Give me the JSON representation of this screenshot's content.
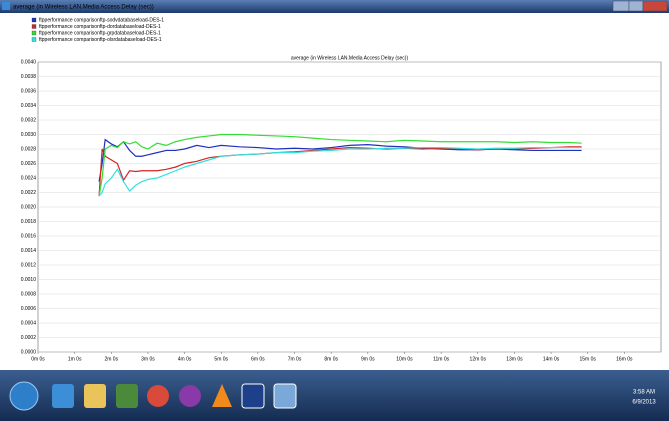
{
  "window": {
    "title": "average (in Wireless LAN.Media Access Delay (sec))"
  },
  "taskbar": {
    "time": "3:58 AM",
    "date": "6/9/2013"
  },
  "chart_data": {
    "type": "line",
    "title": "average (in Wireless LAN.Media Access Delay (sec))",
    "x": [
      100,
      105,
      110,
      120,
      130,
      140,
      150,
      160,
      170,
      180,
      195,
      210,
      225,
      240,
      260,
      280,
      300,
      330,
      360,
      390,
      420,
      450,
      480,
      510,
      540,
      570,
      600,
      630,
      660,
      690,
      720,
      750,
      780,
      810,
      840,
      870,
      890
    ],
    "series": [
      {
        "name": "ftpperformance comparisonftp-sodvdatabaseload-DES-1",
        "color": "#1f2fbf",
        "values": [
          0.00235,
          0.0026,
          0.00293,
          0.00287,
          0.00283,
          0.0029,
          0.00278,
          0.0027,
          0.0027,
          0.00272,
          0.00275,
          0.00278,
          0.00278,
          0.0028,
          0.00285,
          0.00282,
          0.00285,
          0.00283,
          0.00282,
          0.0028,
          0.00281,
          0.0028,
          0.00282,
          0.00285,
          0.00286,
          0.00284,
          0.00283,
          0.00281,
          0.0028,
          0.00279,
          0.00279,
          0.0028,
          0.00279,
          0.00278,
          0.00278,
          0.00278,
          0.00278
        ]
      },
      {
        "name": "ftpperformance comparisonftp-dordatabaseload-DES-1",
        "color": "#d42424",
        "values": [
          0.00215,
          0.0028,
          0.0027,
          0.00265,
          0.0026,
          0.00237,
          0.0025,
          0.00249,
          0.0025,
          0.0025,
          0.0025,
          0.00252,
          0.00255,
          0.0026,
          0.00263,
          0.00268,
          0.0027,
          0.00272,
          0.00273,
          0.00275,
          0.00276,
          0.00278,
          0.0028,
          0.00282,
          0.00281,
          0.0028,
          0.00281,
          0.0028,
          0.00281,
          0.0028,
          0.00279,
          0.0028,
          0.0028,
          0.00281,
          0.00282,
          0.00283,
          0.00283
        ]
      },
      {
        "name": "ftpperformance comparisonftp-grpdatabaseload-DES-1",
        "color": "#33dd33",
        "values": [
          0.00215,
          0.0024,
          0.0028,
          0.00285,
          0.00282,
          0.0029,
          0.00287,
          0.0029,
          0.00283,
          0.0028,
          0.00288,
          0.00285,
          0.0029,
          0.00293,
          0.00296,
          0.00298,
          0.003,
          0.003,
          0.00299,
          0.00298,
          0.00297,
          0.00295,
          0.00293,
          0.00292,
          0.00291,
          0.0029,
          0.00292,
          0.00291,
          0.0029,
          0.0029,
          0.0029,
          0.0029,
          0.00289,
          0.0029,
          0.00289,
          0.00289,
          0.00288
        ]
      },
      {
        "name": "ftpperformance comparisonftp-olsrdatabaseload-DES-1",
        "color": "#33e0e0",
        "values": [
          0.00215,
          0.0022,
          0.00232,
          0.0024,
          0.00252,
          0.00235,
          0.00222,
          0.0023,
          0.00235,
          0.00238,
          0.0024,
          0.00245,
          0.0025,
          0.00255,
          0.0026,
          0.00265,
          0.0027,
          0.00272,
          0.00273,
          0.00275,
          0.00275,
          0.00277,
          0.00278,
          0.0028,
          0.0028,
          0.00281,
          0.00281,
          0.00282,
          0.00282,
          0.00281,
          0.0028,
          0.00281,
          0.00281,
          0.00282,
          0.00282,
          0.00282,
          0.00282
        ]
      }
    ],
    "xlim": [
      0,
      1020
    ],
    "xticks": [
      {
        "value": 0,
        "label": "0m 0s"
      },
      {
        "value": 60,
        "label": "1m 0s"
      },
      {
        "value": 120,
        "label": "2m 0s"
      },
      {
        "value": 180,
        "label": "3m 0s"
      },
      {
        "value": 240,
        "label": "4m 0s"
      },
      {
        "value": 300,
        "label": "5m 0s"
      },
      {
        "value": 360,
        "label": "6m 0s"
      },
      {
        "value": 420,
        "label": "7m 0s"
      },
      {
        "value": 480,
        "label": "8m 0s"
      },
      {
        "value": 540,
        "label": "9m 0s"
      },
      {
        "value": 600,
        "label": "10m 0s"
      },
      {
        "value": 660,
        "label": "11m 0s"
      },
      {
        "value": 720,
        "label": "12m 0s"
      },
      {
        "value": 780,
        "label": "13m 0s"
      },
      {
        "value": 840,
        "label": "14m 0s"
      },
      {
        "value": 900,
        "label": "15m 0s"
      },
      {
        "value": 960,
        "label": "16m 0s"
      }
    ],
    "ylim": [
      0,
      0.004
    ],
    "yticks": [
      {
        "value": 0,
        "label": "0.0000"
      },
      0.0002,
      0.0004,
      0.0006,
      0.0008,
      {
        "value": 0.001,
        "label": "0.0010"
      },
      0.0012,
      0.0014,
      0.0016,
      0.0018,
      {
        "value": 0.002,
        "label": "0.0020"
      },
      0.0022,
      0.0024,
      0.0026,
      0.0028,
      {
        "value": 0.003,
        "label": "0.0030"
      },
      0.0032,
      0.0034,
      0.0036,
      0.0038,
      {
        "value": 0.004,
        "label": "0.0040"
      }
    ],
    "grid": true
  }
}
